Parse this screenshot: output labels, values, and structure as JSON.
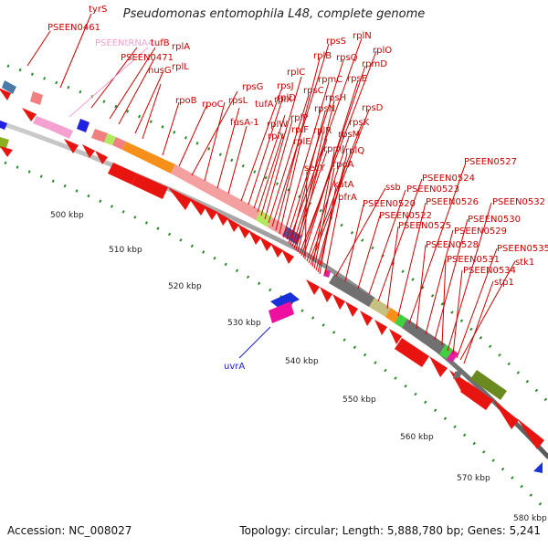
{
  "title": "Pseudomonas entomophila L48, complete genome",
  "accession": "Accession: NC_008027",
  "summary": "Topology: circular; Length: 5,888,780 bp; Genes: 5,241",
  "colors": {
    "forward_cds": "#e8140f",
    "label_red": "#cc0000",
    "label_blue": "#1a1acc",
    "label_pink": "#f4a0d0",
    "backbone": "#888888",
    "tick": "#2b8a2b"
  },
  "scale_labels": [
    "500 kbp",
    "510 kbp",
    "520 kbp",
    "530 kbp",
    "540 kbp",
    "550 kbp",
    "560 kbp",
    "570 kbp",
    "580 kbp"
  ],
  "gene_labels": [
    "tyrS",
    "PSEEN0461",
    "PSEENtRNA4",
    "tufB",
    "rplA",
    "PSEEN0471",
    "nusG",
    "rplL",
    "rpoB",
    "rpoC",
    "rpsG",
    "rpsL",
    "tufA",
    "fusA-1",
    "rpsJ",
    "rplC",
    "rplD",
    "rplW",
    "rplB",
    "rplV",
    "rpsS",
    "rpsC",
    "rplP",
    "rpmC",
    "rpsQ",
    "rplN",
    "rpsN",
    "rplX",
    "rplE",
    "rplR",
    "rpsH",
    "rplO",
    "rpmD",
    "rpsE",
    "rplF",
    "rpsM",
    "rpsK",
    "rpsD",
    "rpmJ",
    "secY",
    "rpoA",
    "rplQ",
    "katA",
    "bfrA",
    "ssb",
    "PSEEN0520",
    "PSEEN0522",
    "PSEEN0523",
    "PSEEN0524",
    "PSEEN0525",
    "PSEEN0526",
    "PSEEN0527",
    "PSEEN0528",
    "PSEEN0529",
    "PSEEN0530",
    "PSEEN0531",
    "PSEEN0532",
    "PSEEN0534",
    "PSEEN0535",
    "stk1",
    "stp1",
    "uvrA"
  ]
}
